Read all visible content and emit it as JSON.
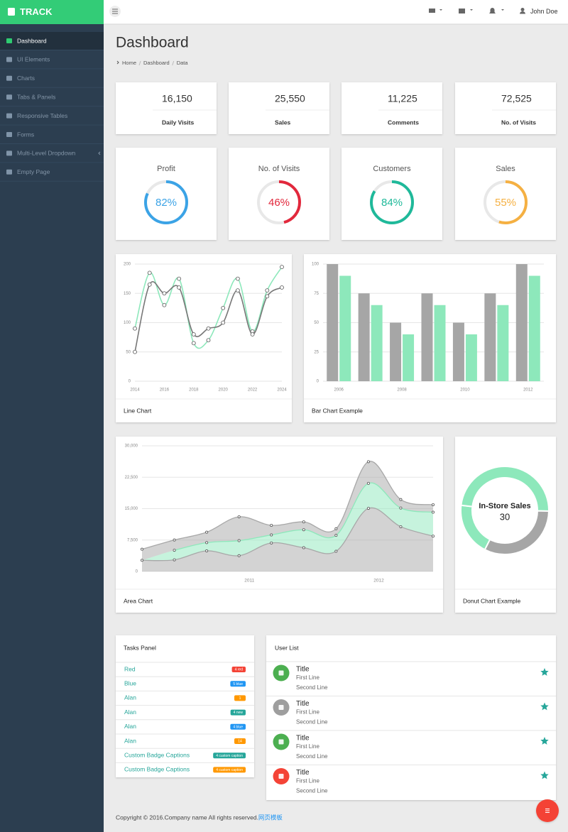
{
  "header": {
    "logo": "TRACK",
    "user": "John Doe"
  },
  "sidebar": {
    "items": [
      "Dashboard",
      "UI Elements",
      "Charts",
      "Tabs & Panels",
      "Responsive Tables",
      "Forms",
      "Multi-Level Dropdown",
      "Empty Page"
    ],
    "active": 0
  },
  "page": {
    "title": "Dashboard",
    "breadcrumb": [
      "Home",
      "Dashboard",
      "Data"
    ]
  },
  "stat_cards": [
    {
      "value": "16,150",
      "label": "Daily Visits",
      "color": "#f44336"
    },
    {
      "value": "25,550",
      "label": "Sales",
      "color": "#ff9800"
    },
    {
      "value": "11,225",
      "label": "Comments",
      "color": "#2196f3"
    },
    {
      "value": "72,525",
      "label": "No. of Visits",
      "color": "#2ecc71"
    }
  ],
  "gauge_range": [
    0,
    100
  ],
  "gauges": [
    {
      "title": "Profit",
      "value": 82,
      "label": "82%",
      "color": "#3ba3e6"
    },
    {
      "title": "No. of Visits",
      "value": 46,
      "label": "46%",
      "color": "#e2283c"
    },
    {
      "title": "Customers",
      "value": 84,
      "label": "84%",
      "color": "#1fb99a"
    },
    {
      "title": "Sales",
      "value": 55,
      "label": "55%",
      "color": "#f5b042"
    }
  ],
  "chart_data": [
    {
      "type": "line",
      "title": "Line Chart",
      "x": [
        2014,
        2015,
        2016,
        2017,
        2018,
        2019,
        2020,
        2021,
        2022,
        2023,
        2024
      ],
      "xlim": [
        2014,
        2024
      ],
      "xticks": [
        2014,
        2016,
        2018,
        2020,
        2022,
        2024
      ],
      "ylim": [
        0,
        200
      ],
      "yticks": [
        0,
        50,
        100,
        150,
        200
      ],
      "grid": true,
      "series": [
        {
          "color": "#8de8bb",
          "values": [
            90,
            185,
            130,
            175,
            65,
            70,
            125,
            175,
            85,
            155,
            195
          ]
        },
        {
          "color": "#777777",
          "values": [
            50,
            165,
            150,
            160,
            80,
            90,
            100,
            155,
            80,
            145,
            160
          ]
        }
      ]
    },
    {
      "type": "bar",
      "title": "Bar Chart Example",
      "categories": [
        "2006",
        null,
        "2008",
        null,
        "2010",
        null,
        "2012"
      ],
      "ylim": [
        0,
        100
      ],
      "yticks": [
        0,
        25,
        50,
        75,
        100
      ],
      "grid": true,
      "series": [
        {
          "color": "#a6a6a6",
          "values": [
            100,
            75,
            50,
            75,
            50,
            75,
            100
          ]
        },
        {
          "color": "#8de8bb",
          "values": [
            90,
            65,
            40,
            65,
            40,
            65,
            90
          ]
        }
      ]
    },
    {
      "type": "area",
      "stacked": true,
      "title": "Area Chart",
      "x": [
        2010.17,
        2010.42,
        2010.67,
        2010.92,
        2011.17,
        2011.42,
        2011.67,
        2011.92,
        2012.17,
        2012.42
      ],
      "xlim": [
        2010.17,
        2012.42
      ],
      "xticks": [
        2011,
        2012
      ],
      "ylim": [
        0,
        30000
      ],
      "yticks": [
        0,
        {
          "value": 7500,
          "label": "7,500"
        },
        {
          "value": 15000,
          "label": "15,000"
        },
        {
          "value": 22500,
          "label": "22,500"
        },
        {
          "value": 30000,
          "label": "30,000"
        }
      ],
      "grid": true,
      "series": [
        {
          "color": "#a8a8a8",
          "values": [
            2666,
            2778,
            4912,
            3767,
            6810,
            5670,
            4820,
            15073,
            10687,
            8432
          ]
        },
        {
          "color": "#8de8bb",
          "values": [
            null,
            2294,
            1969,
            3597,
            1914,
            4293,
            3795,
            5967,
            4460,
            5713
          ]
        },
        {
          "color": "#a8a8a8",
          "values": [
            2647,
            2441,
            2501,
            5689,
            2293,
            1881,
            1588,
            5175,
            2028,
            1791
          ]
        }
      ]
    },
    {
      "type": "pie",
      "donut": true,
      "title": "Donut Chart Example",
      "categories": [
        null,
        "In-Store Sales",
        null
      ],
      "values": [
        12,
        30,
        20
      ],
      "colors": [
        "#8de8bb",
        "#8de8bb",
        "#a6a6a6"
      ],
      "selected": 1
    }
  ],
  "tasks": {
    "title": "Tasks Panel",
    "items": [
      {
        "text": "Red",
        "badge": "4 red",
        "color": "#f44336"
      },
      {
        "text": "Blue",
        "badge": "5 blue",
        "color": "#2196f3"
      },
      {
        "text": "Alan",
        "badge": "1",
        "color": "#ff9800"
      },
      {
        "text": "Alan",
        "badge": "4 new",
        "color": "#26a69a"
      },
      {
        "text": "Alan",
        "badge": "4 blue",
        "color": "#2196f3"
      },
      {
        "text": "Alan",
        "badge": "14",
        "color": "#ff9800"
      },
      {
        "text": "Custom Badge Captions",
        "badge": "4 custom caption",
        "color": "#26a69a"
      },
      {
        "text": "Custom Badge Captions",
        "badge": "4 custom caption",
        "color": "#ff9800"
      }
    ]
  },
  "users": {
    "title": "User List",
    "items": [
      {
        "title": "Title",
        "line1": "First Line",
        "line2": "Second Line",
        "color": "#4caf50"
      },
      {
        "title": "Title",
        "line1": "First Line",
        "line2": "Second Line",
        "color": "#9e9e9e"
      },
      {
        "title": "Title",
        "line1": "First Line",
        "line2": "Second Line",
        "color": "#4caf50"
      },
      {
        "title": "Title",
        "line1": "First Line",
        "line2": "Second Line",
        "color": "#f44336"
      }
    ]
  },
  "footer": {
    "text": "Copyright © 2016.Company name All rights reserved.",
    "link": "网页模板"
  }
}
